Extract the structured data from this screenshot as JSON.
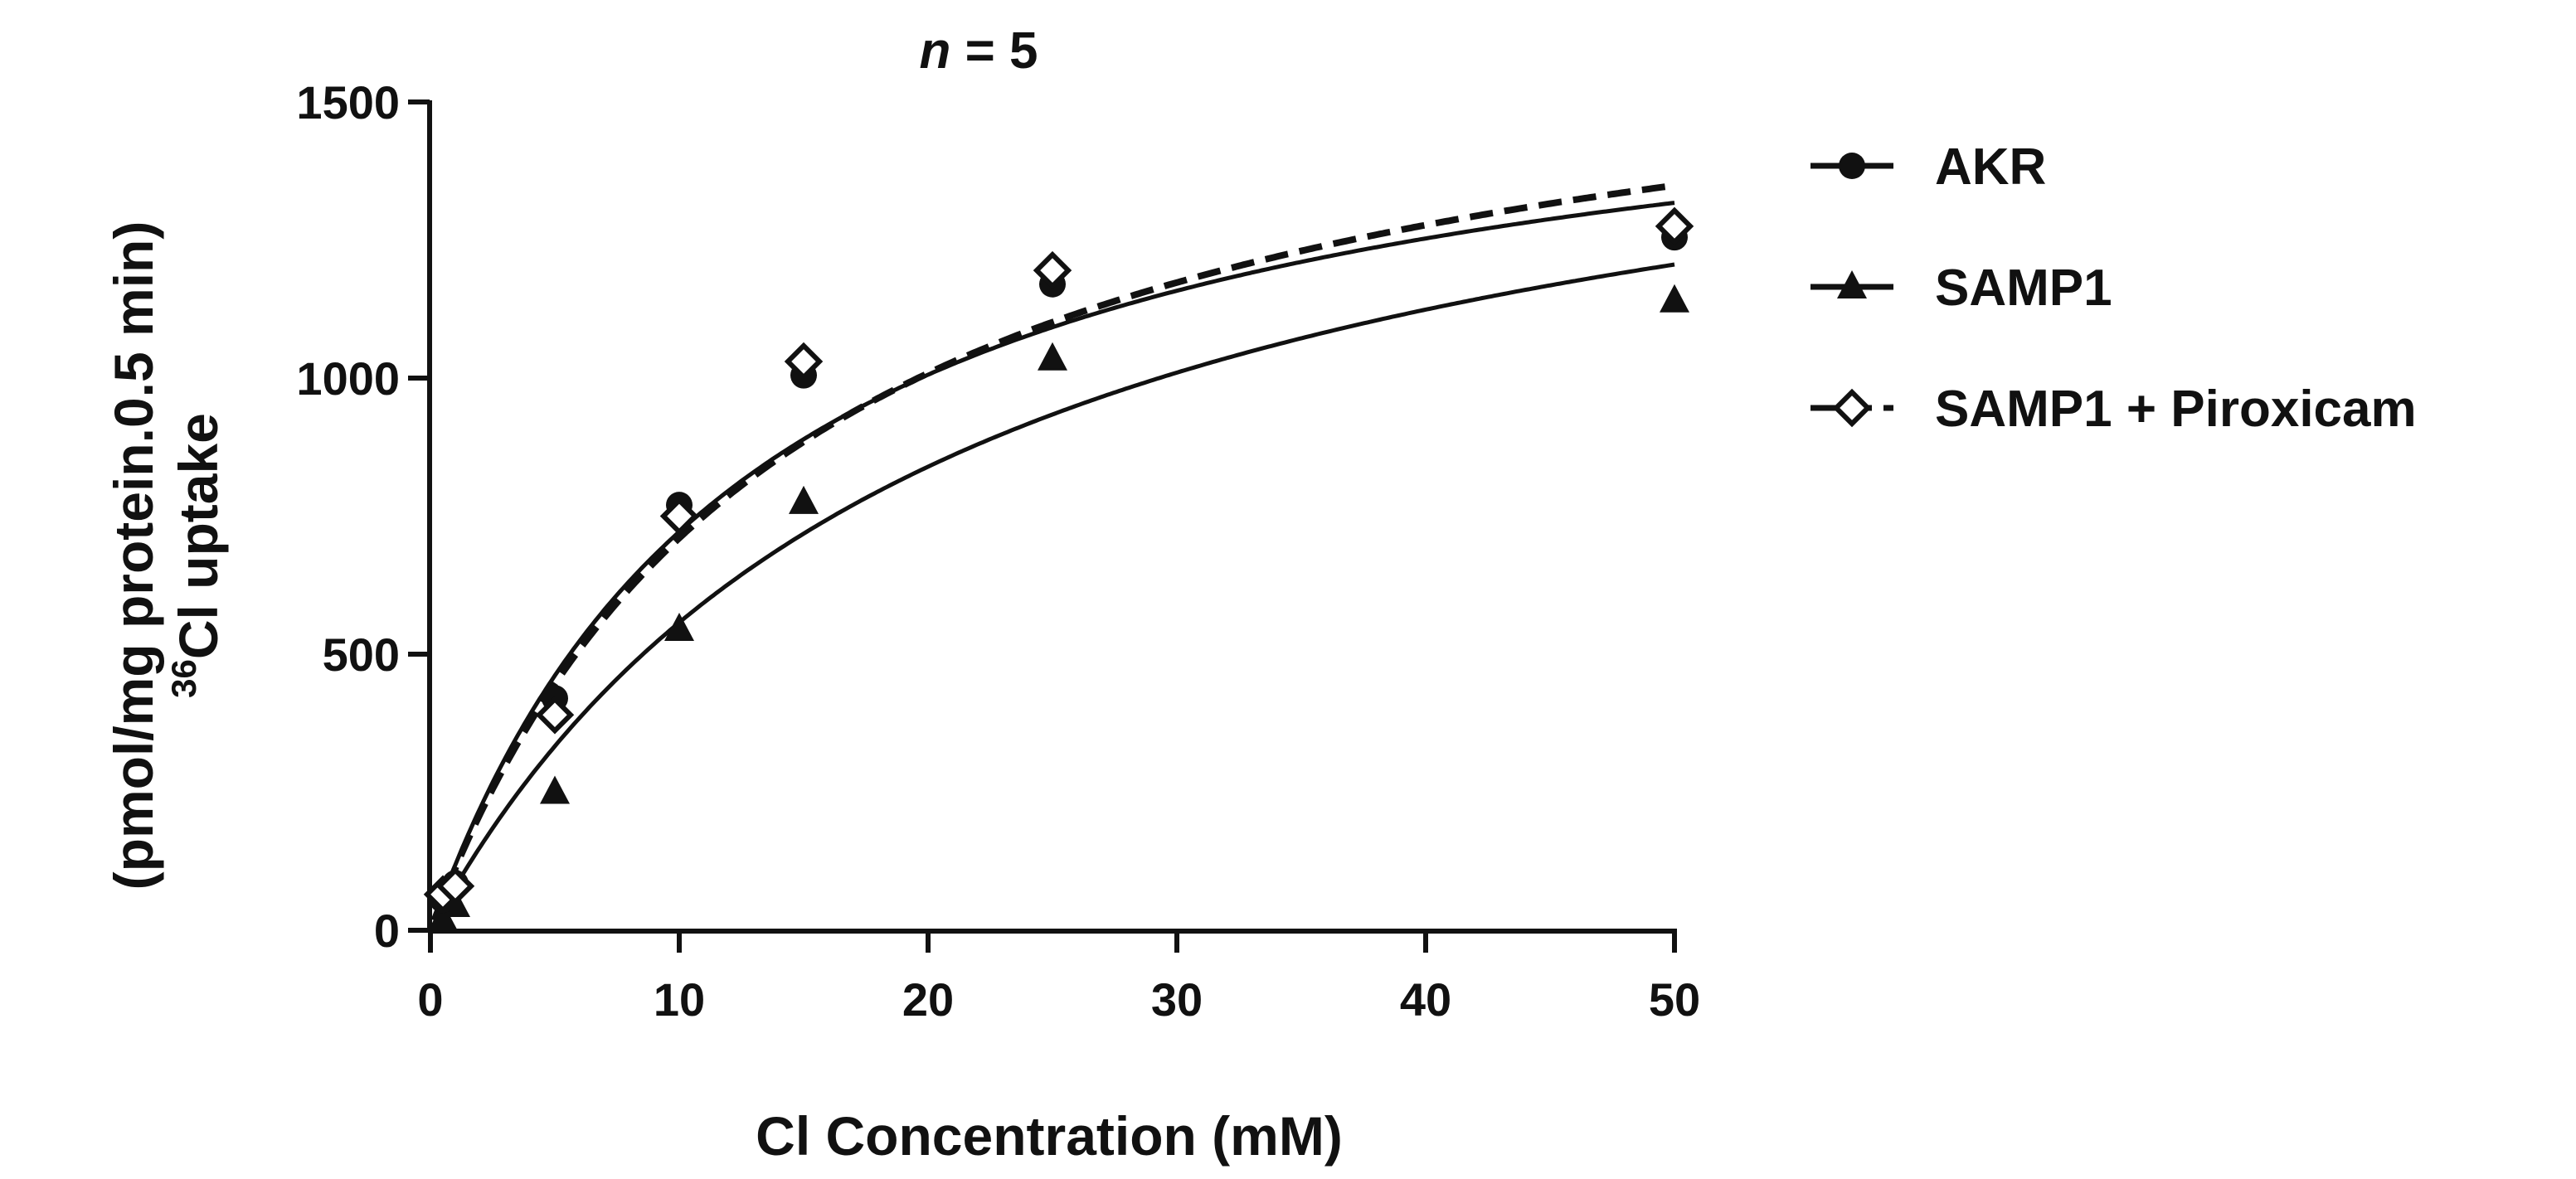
{
  "chart_data": {
    "type": "scatter",
    "title_italic": "n",
    "title_rest": " = 5",
    "xlabel": "Cl Concentration (mM)",
    "ylabel_sup": "36",
    "ylabel_line1": "Cl uptake",
    "ylabel_line2": "(pmol/mg protein.0.5 min)",
    "xlim": [
      0,
      50
    ],
    "ylim": [
      0,
      1500
    ],
    "xticks": [
      0,
      10,
      20,
      30,
      40,
      50
    ],
    "yticks": [
      0,
      500,
      1000,
      1500
    ],
    "legend_position": "right",
    "series": [
      {
        "name": "AKR",
        "marker": "circle",
        "line_style": "solid",
        "x": [
          0.5,
          1,
          5,
          10,
          15,
          25,
          50
        ],
        "y": [
          55,
          85,
          420,
          770,
          1005,
          1170,
          1255
        ],
        "fit": {
          "model": "Michaelis-Menten",
          "vmax": 1660,
          "km": 13.0
        }
      },
      {
        "name": "SAMP1",
        "marker": "triangle",
        "line_style": "solid",
        "x": [
          0.5,
          1,
          5,
          10,
          15,
          25,
          50
        ],
        "y": [
          20,
          45,
          250,
          545,
          775,
          1035,
          1140
        ],
        "fit": {
          "model": "Michaelis-Menten",
          "vmax": 1700,
          "km": 20.5
        }
      },
      {
        "name": "SAMP1 + Piroxicam",
        "marker": "diamond-open",
        "line_style": "dashed",
        "x": [
          0.5,
          1,
          5,
          10,
          15,
          25,
          50
        ],
        "y": [
          65,
          80,
          390,
          750,
          1030,
          1195,
          1275
        ],
        "fit": {
          "model": "Michaelis-Menten",
          "vmax": 1740,
          "km": 14.5
        }
      }
    ]
  }
}
